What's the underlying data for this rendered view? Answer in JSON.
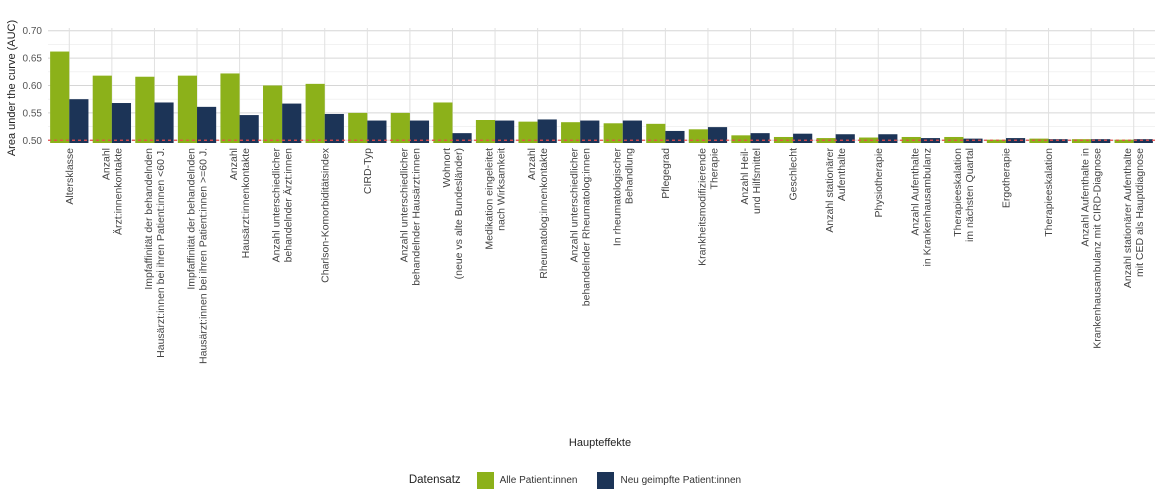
{
  "chart_data": {
    "type": "bar",
    "title": "",
    "xlabel": "Haupteffekte",
    "ylabel": "Area under the curve (AUC)",
    "ylim": [
      0.495,
      0.705
    ],
    "yticks": [
      "0.50",
      "0.55",
      "0.60",
      "0.65",
      "0.70"
    ],
    "reference_line": 0.5,
    "grid": true,
    "legend_position": "bottom",
    "categories": [
      [
        "Altersklasse"
      ],
      [
        "Anzahl",
        "Ärzt:innenkontakte"
      ],
      [
        "Impfaffinität der behandelnden",
        "Hausärzt:innen bei ihren Patient:innen <60 J."
      ],
      [
        "Impfaffinität der behandelnden",
        "Hausärzt:innen bei ihren Patient:innen >=60 J."
      ],
      [
        "Anzahl",
        "Hausärzt:innenkontakte"
      ],
      [
        "Anzahl unterschiedlicher",
        "behandelnder Ärzt:innen"
      ],
      [
        "Charlson-Komorbiditätsindex"
      ],
      [
        "CIRD-Typ"
      ],
      [
        "Anzahl unterschiedlicher",
        "behandelnder Hausärzt:innen"
      ],
      [
        "Wohnort",
        "(neue vs alte Bundesländer)"
      ],
      [
        "Medikation eingeleitet",
        "nach Wirksamkeit"
      ],
      [
        "Anzahl",
        "Rheumatolog:innenkontakte"
      ],
      [
        "Anzahl unterschiedlicher",
        "behandelnder Rheumatolog:innen"
      ],
      [
        "In rheumatologischer",
        "Behandlung"
      ],
      [
        "Pflegegrad"
      ],
      [
        "Krankheitsmodifizierende",
        "Therapie"
      ],
      [
        "Anzahl Heil-",
        "und Hilfsmittel"
      ],
      [
        "Geschlecht"
      ],
      [
        "Anzahl stationärer",
        "Aufenthalte"
      ],
      [
        "Physiotherapie"
      ],
      [
        "Anzahl Aufenthalte",
        "in Krankenhausambulanz"
      ],
      [
        "Therapieeskalation",
        "im nächsten Quartal"
      ],
      [
        "Ergotherapie"
      ],
      [
        "Therapieeskalation"
      ],
      [
        "Anzahl Aufenthalte in",
        "Krankenhausambulanz mit CIRD-Diagnose"
      ],
      [
        "Anzahl stationärer Aufenthalte",
        "mit CED als Hauptdiagnose"
      ]
    ],
    "series": [
      {
        "name": "Alle Patient:innen",
        "color": "#8cb11a",
        "values": [
          0.662,
          0.618,
          0.616,
          0.618,
          0.622,
          0.6,
          0.603,
          0.55,
          0.55,
          0.569,
          0.537,
          0.534,
          0.533,
          0.531,
          0.53,
          0.52,
          0.509,
          0.506,
          0.504,
          0.505,
          0.506,
          0.506,
          0.501,
          0.503,
          0.502,
          0.501
        ]
      },
      {
        "name": "Neu geimpfte Patient:innen",
        "color": "#1c3457",
        "values": [
          0.575,
          0.568,
          0.569,
          0.561,
          0.546,
          0.567,
          0.548,
          0.536,
          0.536,
          0.513,
          0.536,
          0.538,
          0.536,
          0.536,
          0.517,
          0.524,
          0.513,
          0.512,
          0.511,
          0.511,
          0.504,
          0.503,
          0.504,
          0.502,
          0.502,
          0.502
        ]
      }
    ]
  },
  "legend": {
    "title": "Datensatz",
    "items": [
      {
        "label": "Alle Patient:innen",
        "color": "#8cb11a"
      },
      {
        "label": "Neu geimpfte Patient:innen",
        "color": "#1c3457"
      }
    ]
  },
  "reference_line_color": "#e84a4a"
}
